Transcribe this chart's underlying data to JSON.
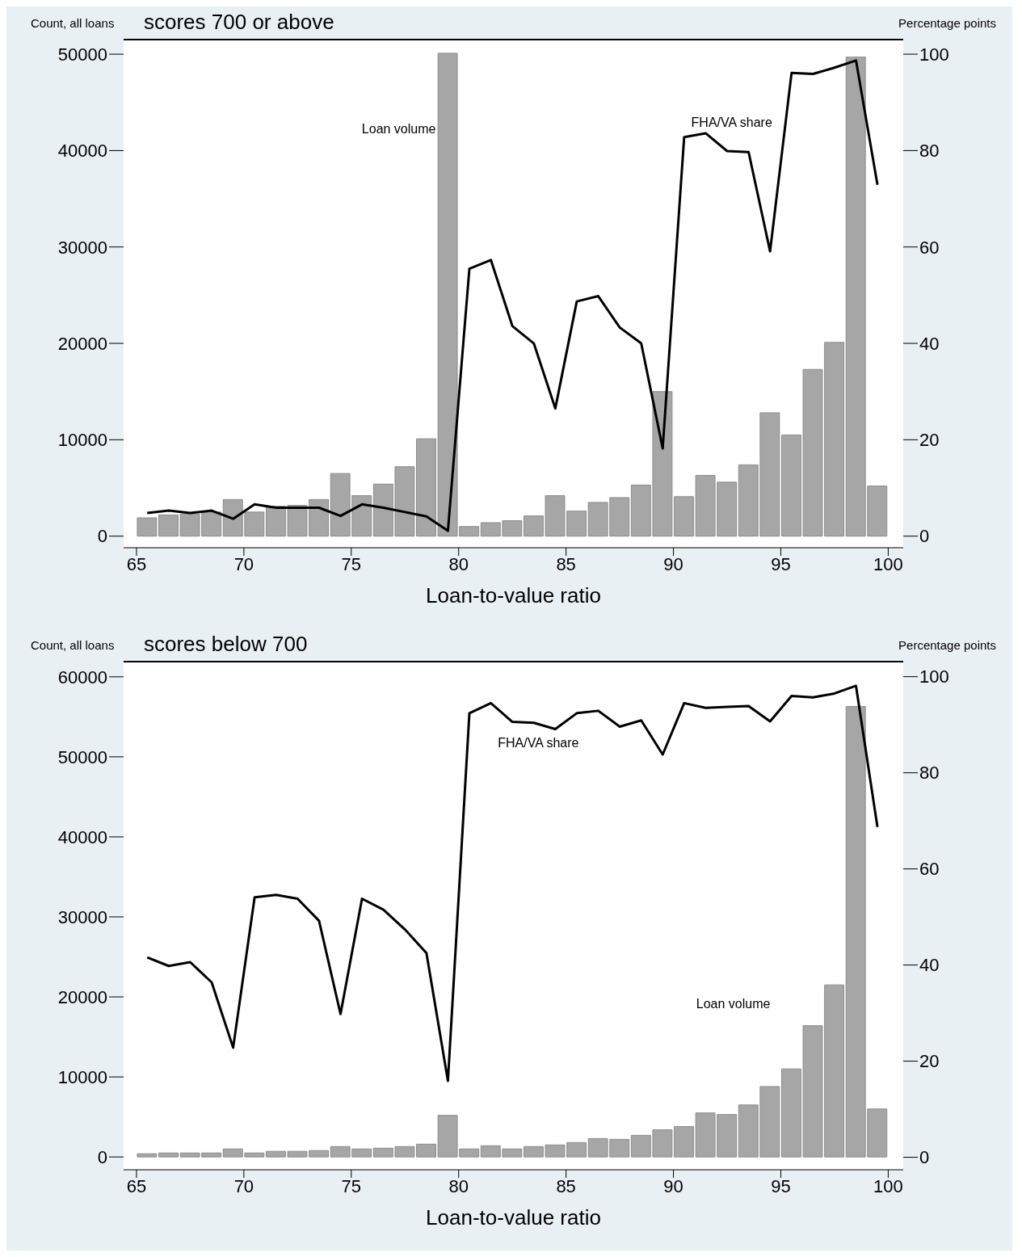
{
  "chart_data": [
    {
      "type": "bar",
      "title": "scores 700 or above",
      "xlabel": "Loan-to-value ratio",
      "ylabel": "Count, all loans",
      "y2label": "Percentage points",
      "x": [
        65.5,
        66.5,
        67.5,
        68.5,
        69.5,
        70.5,
        71.5,
        72.5,
        73.5,
        74.5,
        75.5,
        76.5,
        77.5,
        78.5,
        79.5,
        80.5,
        81.5,
        82.5,
        83.5,
        84.5,
        85.5,
        86.5,
        87.5,
        88.5,
        89.5,
        90.5,
        91.5,
        92.5,
        93.5,
        94.5,
        95.5,
        96.5,
        97.5,
        98.5,
        99.5
      ],
      "series": [
        {
          "name": "Loan volume",
          "color": "#a6a6a6",
          "values": [
            1900,
            2200,
            2300,
            2500,
            3800,
            2500,
            3100,
            3200,
            3800,
            6500,
            4200,
            5400,
            7200,
            10100,
            50100,
            1000,
            1400,
            1600,
            2100,
            4200,
            2600,
            3500,
            4000,
            5300,
            15000,
            4100,
            6300,
            5600,
            7400,
            12800,
            10500,
            17300,
            20100,
            49700,
            5200
          ]
        },
        {
          "name": "FHA/VA share",
          "type": "line",
          "axis": "y2",
          "color": "#000000",
          "values": [
            4.8,
            5.3,
            4.8,
            5.3,
            3.6,
            6.6,
            5.9,
            5.9,
            5.9,
            4.2,
            6.6,
            5.9,
            5.0,
            4.1,
            1.1,
            55.5,
            57.3,
            43.6,
            40.0,
            26.5,
            48.7,
            49.8,
            43.3,
            40.0,
            18.2,
            82.8,
            83.6,
            79.9,
            79.7,
            59.1,
            96.1,
            95.9,
            97.2,
            98.7,
            72.9
          ]
        }
      ],
      "xlim": [
        64.4,
        100.7
      ],
      "xticks": [
        65,
        70,
        75,
        80,
        85,
        90,
        95,
        100
      ],
      "ylim": [
        -1200,
        51600
      ],
      "yticks": [
        0,
        10000,
        20000,
        30000,
        40000,
        50000
      ],
      "y2lim": [
        -2.4,
        103.2
      ],
      "y2ticks": [
        0,
        20,
        40,
        60,
        80,
        100
      ],
      "grid": false,
      "legend": false,
      "marker": "none",
      "line_style": "solid"
    },
    {
      "type": "bar",
      "title": "scores below 700",
      "xlabel": "Loan-to-value ratio",
      "ylabel": "Count, all loans",
      "y2label": "Percentage points",
      "x": [
        65.5,
        66.5,
        67.5,
        68.5,
        69.5,
        70.5,
        71.5,
        72.5,
        73.5,
        74.5,
        75.5,
        76.5,
        77.5,
        78.5,
        79.5,
        80.5,
        81.5,
        82.5,
        83.5,
        84.5,
        85.5,
        86.5,
        87.5,
        88.5,
        89.5,
        90.5,
        91.5,
        92.5,
        93.5,
        94.5,
        95.5,
        96.5,
        97.5,
        98.5,
        99.5
      ],
      "series": [
        {
          "name": "Loan volume",
          "color": "#a6a6a6",
          "values": [
            400,
            500,
            500,
            500,
            1000,
            500,
            700,
            700,
            800,
            1300,
            1000,
            1100,
            1300,
            1600,
            5200,
            1000,
            1400,
            1000,
            1300,
            1500,
            1800,
            2300,
            2200,
            2700,
            3400,
            3800,
            5500,
            5300,
            6500,
            8800,
            11000,
            16400,
            21500,
            56300,
            6000
          ]
        },
        {
          "name": "FHA/VA share",
          "type": "line",
          "axis": "y2",
          "color": "#000000",
          "values": [
            41.6,
            39.8,
            40.6,
            36.4,
            22.8,
            54.1,
            54.6,
            53.8,
            49.2,
            29.8,
            53.8,
            51.5,
            47.4,
            42.5,
            15.9,
            92.4,
            94.5,
            90.6,
            90.4,
            89.1,
            92.4,
            92.9,
            89.6,
            90.9,
            83.8,
            94.5,
            93.5,
            93.7,
            93.9,
            90.7,
            96.0,
            95.7,
            96.5,
            98.1,
            68.7
          ]
        }
      ],
      "xlim": [
        64.4,
        100.7
      ],
      "xticks": [
        65,
        70,
        75,
        80,
        85,
        90,
        95,
        100
      ],
      "ylim": [
        -1600,
        62000
      ],
      "yticks": [
        0,
        10000,
        20000,
        30000,
        40000,
        50000,
        60000
      ],
      "y2lim": [
        -2.6,
        103.3
      ],
      "y2ticks": [
        0,
        20,
        40,
        60,
        80,
        100
      ],
      "grid": false,
      "legend": false,
      "marker": "none",
      "line_style": "solid"
    }
  ]
}
